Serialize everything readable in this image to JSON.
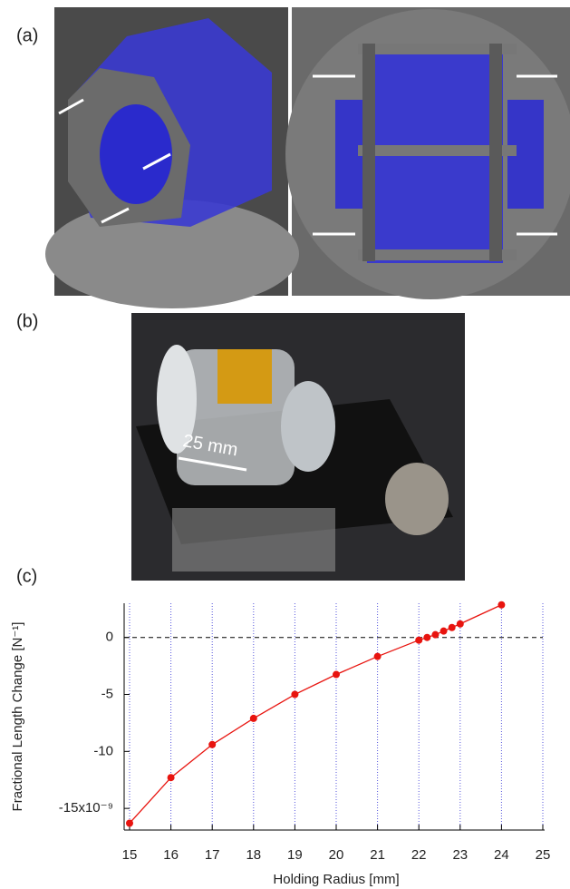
{
  "panels": {
    "a": "(a)",
    "b": "(b)",
    "c": "(c)",
    "photo_annotation": "25 mm"
  },
  "chart_data": {
    "type": "line",
    "xlabel": "Holding Radius [mm]",
    "ylabel": "Fractional Length Change [N⁻¹]",
    "x": [
      15,
      16,
      17,
      18,
      19,
      20,
      21,
      22,
      22.2,
      22.4,
      22.6,
      22.8,
      23,
      24
    ],
    "series": [
      {
        "color": "#e8140f",
        "values": [
          -16.3,
          -12.3,
          -9.4,
          -7.1,
          -5.0,
          -3.25,
          -1.67,
          -0.24,
          0,
          0.24,
          0.56,
          0.87,
          1.19,
          2.86
        ]
      }
    ],
    "xlim": [
      15,
      25
    ],
    "xticks": [
      15,
      16,
      17,
      18,
      19,
      20,
      21,
      22,
      23,
      24,
      25
    ],
    "ylim": [
      -16.5,
      3
    ],
    "yticks": [
      0,
      -5,
      -10,
      {
        "value": -15,
        "label": "-15x10⁻⁹"
      }
    ],
    "grid": true,
    "grid_color": "#5555dd"
  }
}
